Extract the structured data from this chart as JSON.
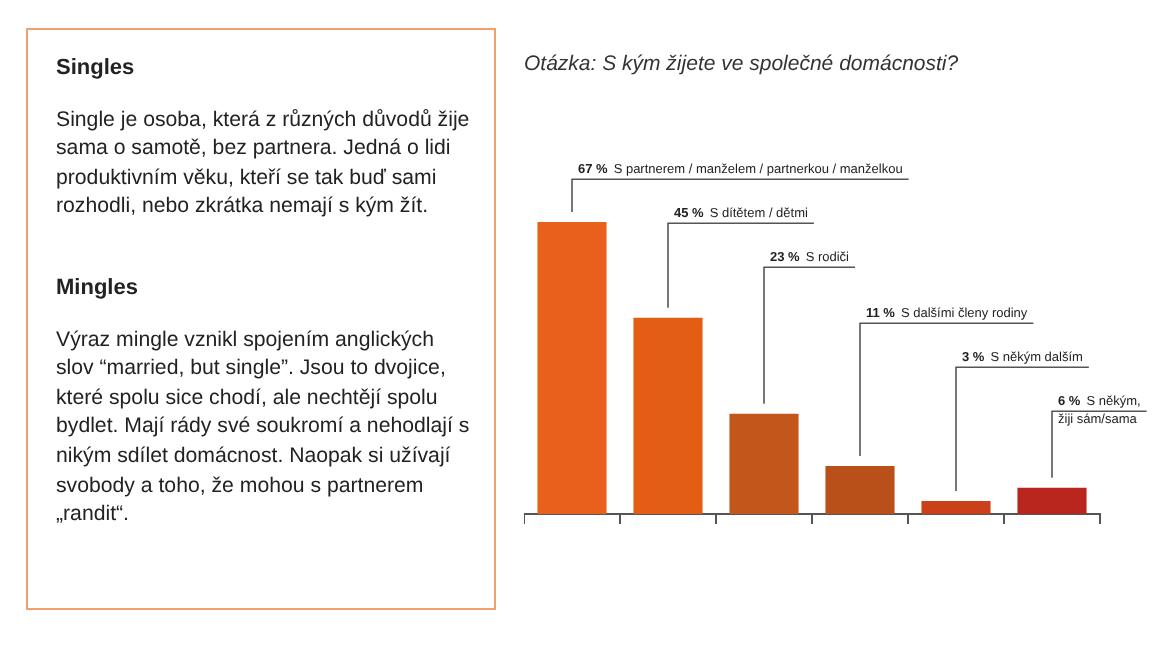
{
  "chart_data": [
    {
      "type": "other",
      "annotations": [
        "Singles",
        "Single je osoba, která z různých důvodů žije sama o samotě, bez partnera. Jedná o lidi produktivním věku, kteří se tak buď sami rozhodli, nebo zkrátka nemají s kým žít.",
        "Mingles",
        "Výraz mingle vznikl spojením anglických slov “married, but single”. Jsou to dvojice, které spolu sice chodí, ale nechtějí spolu bydlet. Mají rády své soukromí a nehodlají s nikým sdílet domácnost. Naopak si užívají svobody a toho, že mohou s partnerem „randit“."
      ]
    },
    {
      "type": "bar",
      "title": "Otázka: S kým žijete ve společné domácnosti?",
      "categories": [
        null,
        null,
        null,
        null,
        null,
        null
      ],
      "annotations": [
        "S partnerem / manželem / partnerkou / manželkou",
        "S dítětem / dětmi",
        "S rodiči",
        "S dalšími členy rodiny",
        "S někým dalším",
        "S někým, žiji sám/sama"
      ],
      "values": [
        67,
        45,
        23,
        11,
        3,
        6
      ],
      "value_labels": [
        "67 %",
        "45 %",
        "23 %",
        "11 %",
        "3 %",
        "6 %"
      ],
      "colors": [
        "#e8601c",
        "#e35d14",
        "#c3561b",
        "#b9501a",
        "#c9401b",
        "#b8261e"
      ],
      "tick_labels": false
    }
  ]
}
